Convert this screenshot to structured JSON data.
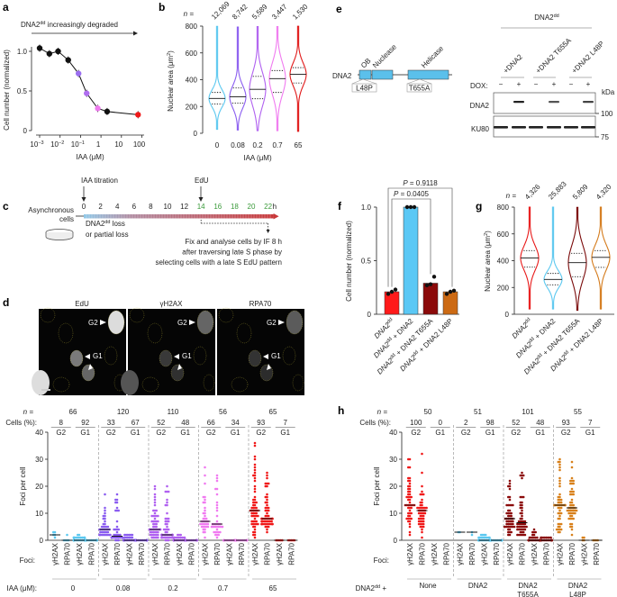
{
  "panels": {
    "a": "a",
    "b": "b",
    "c": "c",
    "d": "d",
    "e": "e",
    "f": "f",
    "g": "g",
    "h": "h"
  },
  "panel_a": {
    "annot_base": "DNA2",
    "annot_sup": "dd",
    "annot_rest": " increasingly degraded"
  },
  "panel_c": {
    "iaa_label": "IAA titration",
    "edu_label": "EdU",
    "hours": [
      "0",
      "2",
      "4",
      "6",
      "8",
      "10",
      "12",
      "14",
      "16",
      "18",
      "20",
      "22"
    ],
    "hour_unit": "h",
    "hour_colors": {
      "before": "#222222",
      "after": "#3a9a3a"
    },
    "cells_line1": "Asynchronous",
    "cells_line2": "cells",
    "loss_base": "DNA2",
    "loss_sup": "dd",
    "loss_rest": " loss",
    "loss_line2": "or partial loss",
    "fix_lines": [
      "Fix and analyse cells by IF 8 h",
      "after traversing late S phase by",
      "selecting cells with a late S EdU pattern"
    ]
  },
  "panel_d_images": {
    "channels": [
      "EdU",
      "γH2AX",
      "RPA70"
    ],
    "g2": "G2",
    "g1": "G1"
  },
  "panel_e": {
    "protein": "DNA2",
    "domains": [
      "OB",
      "Nuclease",
      "Helicase"
    ],
    "mutations": [
      "L48P",
      "T655A"
    ],
    "header_base": "DNA2",
    "header_sup": "dd",
    "lanes": [
      "+DNA2",
      "+DNA2 T655A",
      "+DNA2 L48P"
    ],
    "dox_label": "DOX:",
    "dox": [
      "−",
      "+",
      "−",
      "+",
      "−",
      "+"
    ],
    "blots": [
      "DNA2",
      "KU80"
    ],
    "kda": "kDa",
    "markers": [
      "100",
      "75"
    ],
    "domain_color": "#5bc0eb"
  },
  "chart_data": [
    {
      "panel": "a",
      "type": "line",
      "xscale": "log",
      "xlim": [
        0.0005,
        100
      ],
      "ylim": [
        0,
        1.1
      ],
      "x": [
        0.001,
        0.003,
        0.008,
        0.025,
        0.08,
        0.2,
        0.7,
        2,
        65
      ],
      "y": [
        1.04,
        0.97,
        1.0,
        0.89,
        0.72,
        0.47,
        0.28,
        0.24,
        0.2
      ],
      "point_colors": [
        "#111111",
        "#111111",
        "#111111",
        "#111111",
        "#9b6ef0",
        "#b06ef0",
        "#ee7aee",
        "#111111",
        "#f01818"
      ],
      "xticks": [
        0.001,
        0.01,
        0.1,
        1,
        10,
        100
      ],
      "xtick_labels": [
        {
          "b": "10",
          "e": "−3"
        },
        {
          "b": "10",
          "e": "−2"
        },
        {
          "b": "10",
          "e": "−1"
        },
        {
          "b": "1",
          "e": ""
        },
        {
          "b": "10",
          "e": ""
        },
        {
          "b": "100",
          "e": ""
        }
      ],
      "yticks": [
        0,
        0.5,
        1.0
      ],
      "ytick_labels": [
        "0",
        "0.5",
        "1.0"
      ],
      "xlabel": "IAA (μM)",
      "ylabel": "Cell number (normalized)"
    },
    {
      "panel": "b",
      "type": "violin",
      "categories": [
        "0",
        "0.08",
        "0.2",
        "0.7",
        "65"
      ],
      "n_label": "n =",
      "n": [
        "12,069",
        "8,742",
        "5,589",
        "3,447",
        "1,530"
      ],
      "median": [
        260,
        272,
        328,
        408,
        440
      ],
      "q1": [
        218,
        225,
        258,
        305,
        375
      ],
      "q3": [
        305,
        338,
        425,
        468,
        490
      ],
      "min": [
        30,
        25,
        20,
        20,
        15
      ],
      "max": [
        800,
        800,
        800,
        800,
        800
      ],
      "colors": [
        "#5bc8f0",
        "#8a5cf0",
        "#b060f0",
        "#f07af0",
        "#e01818"
      ],
      "ylim": [
        0,
        800
      ],
      "yticks": [
        "0",
        "200",
        "400",
        "600",
        "800"
      ],
      "xlabel": "IAA (μM)",
      "ylabel_base": "Nuclear area (μm",
      "ylabel_sup": "2",
      "ylabel_end": ")"
    },
    {
      "panel": "f",
      "type": "bar",
      "categories": [
        {
          "b": "DNA2",
          "s": "dd",
          "r": ""
        },
        {
          "b": "DNA2",
          "s": "dd",
          "r": " + DNA2"
        },
        {
          "b": "DNA2",
          "s": "dd",
          "r": " + DNA2 T655A"
        },
        {
          "b": "DNA2",
          "s": "dd",
          "r": " + DNA2 L48P"
        }
      ],
      "values": [
        0.21,
        1.0,
        0.29,
        0.21
      ],
      "points": [
        [
          0.19,
          0.21,
          0.23
        ],
        [
          1.0,
          1.0,
          1.0
        ],
        [
          0.27,
          0.28,
          0.35
        ],
        [
          0.19,
          0.21,
          0.22
        ]
      ],
      "colors": [
        "#ff1a1a",
        "#5bc8f5",
        "#8b0a0a",
        "#cc6a14"
      ],
      "ylim": [
        0,
        1.0
      ],
      "yticks": [
        "0",
        "0.5",
        "1.0"
      ],
      "ylabel": "Cell number (normalized)",
      "comparisons": [
        {
          "between": [
            0,
            3
          ],
          "label_i": "P",
          "label_r": " = 0.9118"
        },
        {
          "between": [
            0,
            2
          ],
          "label_i": "P",
          "label_r": " = 0.0405"
        }
      ]
    },
    {
      "panel": "g",
      "type": "violin",
      "categories": [
        {
          "b": "DNA2",
          "s": "dd",
          "r": ""
        },
        {
          "b": "DNA2",
          "s": "dd",
          "r": " + DNA2"
        },
        {
          "b": "DNA2",
          "s": "dd",
          "r": " + DNA2 T655A"
        },
        {
          "b": "DNA2",
          "s": "dd",
          "r": " + DNA2 L48P"
        }
      ],
      "n_label": "n =",
      "n": [
        "4,326",
        "25,883",
        "5,809",
        "4,320"
      ],
      "median": [
        420,
        260,
        385,
        425
      ],
      "q1": [
        352,
        220,
        280,
        350
      ],
      "q3": [
        475,
        305,
        455,
        475
      ],
      "min": [
        40,
        40,
        30,
        40
      ],
      "max": [
        800,
        800,
        800,
        800
      ],
      "colors": [
        "#e81818",
        "#5bc8f0",
        "#7a0a0a",
        "#d47a1a"
      ],
      "ylim": [
        0,
        800
      ],
      "yticks": [
        "0",
        "200",
        "400",
        "600",
        "800"
      ],
      "ylabel_base": "Nuclear area (μm",
      "ylabel_sup": "2",
      "ylabel_end": ")"
    },
    {
      "panel": "d",
      "type": "scatter",
      "ylabel": "Foci per cell",
      "ylim": [
        0,
        40
      ],
      "yticks": [
        "0",
        "10",
        "20",
        "30",
        "40"
      ],
      "n_label": "n =",
      "cells_label": "Cells (%):",
      "phases": [
        "G2",
        "G1"
      ],
      "foci_label": "Foci:",
      "foci": [
        "γH2AX",
        "RPA70"
      ],
      "group_title": "IAA (μM):",
      "groups": [
        {
          "name": "0",
          "n": "66",
          "cells": [
            "8",
            "92"
          ],
          "color": "#5bc8f0",
          "median": [
            2,
            0,
            0,
            0
          ],
          "max": [
            3,
            2,
            2,
            0
          ]
        },
        {
          "name": "0.08",
          "n": "120",
          "cells": [
            "33",
            "67"
          ],
          "color": "#8a5cf0",
          "median": [
            4,
            1.5,
            0,
            0
          ],
          "max": [
            17,
            17,
            2,
            0
          ]
        },
        {
          "name": "0.2",
          "n": "110",
          "cells": [
            "52",
            "48"
          ],
          "color": "#b060f0",
          "median": [
            4,
            2,
            0,
            0
          ],
          "max": [
            20,
            20,
            2,
            0
          ]
        },
        {
          "name": "0.7",
          "n": "56",
          "cells": [
            "66",
            "34"
          ],
          "color": "#f07af0",
          "median": [
            7,
            6,
            0,
            0
          ],
          "max": [
            27,
            24,
            0,
            0
          ]
        },
        {
          "name": "65",
          "n": "65",
          "cells": [
            "93",
            "7"
          ],
          "color": "#f01818",
          "median": [
            11,
            8,
            0,
            0
          ],
          "max": [
            36,
            25,
            0,
            0
          ]
        }
      ]
    },
    {
      "panel": "h",
      "type": "scatter",
      "ylabel": "Foci per cell",
      "ylim": [
        0,
        40
      ],
      "yticks": [
        "0",
        "10",
        "20",
        "30",
        "40"
      ],
      "n_label": "n =",
      "cells_label": "Cells (%):",
      "phases": [
        "G2",
        "G1"
      ],
      "foci_label": "Foci:",
      "foci": [
        "γH2AX",
        "RPA70"
      ],
      "group_title_base": "DNA2",
      "group_title_sup": "dd",
      "group_title_rest": " +",
      "groups": [
        {
          "name": [
            "None"
          ],
          "n": "50",
          "cells": [
            "100",
            "0"
          ],
          "color": "#f01818",
          "median": [
            13,
            11,
            null,
            null
          ],
          "max": [
            30,
            32,
            null,
            null
          ]
        },
        {
          "name": [
            "DNA2"
          ],
          "n": "51",
          "cells": [
            "2",
            "98"
          ],
          "color": "#5bc8f0",
          "median": [
            3,
            3,
            0,
            0
          ],
          "max": [
            3,
            3,
            2,
            0
          ]
        },
        {
          "name": [
            "DNA2",
            "T655A"
          ],
          "n": "101",
          "cells": [
            "52",
            "48"
          ],
          "color": "#8b0a0a",
          "median": [
            8,
            6.5,
            0,
            0
          ],
          "max": [
            22,
            25,
            4,
            1
          ]
        },
        {
          "name": [
            "DNA2",
            "L48P"
          ],
          "n": "55",
          "cells": [
            "93",
            "7"
          ],
          "color": "#d8801a",
          "median": [
            13,
            12,
            0,
            0
          ],
          "max": [
            30,
            29,
            1,
            0
          ]
        }
      ]
    }
  ]
}
